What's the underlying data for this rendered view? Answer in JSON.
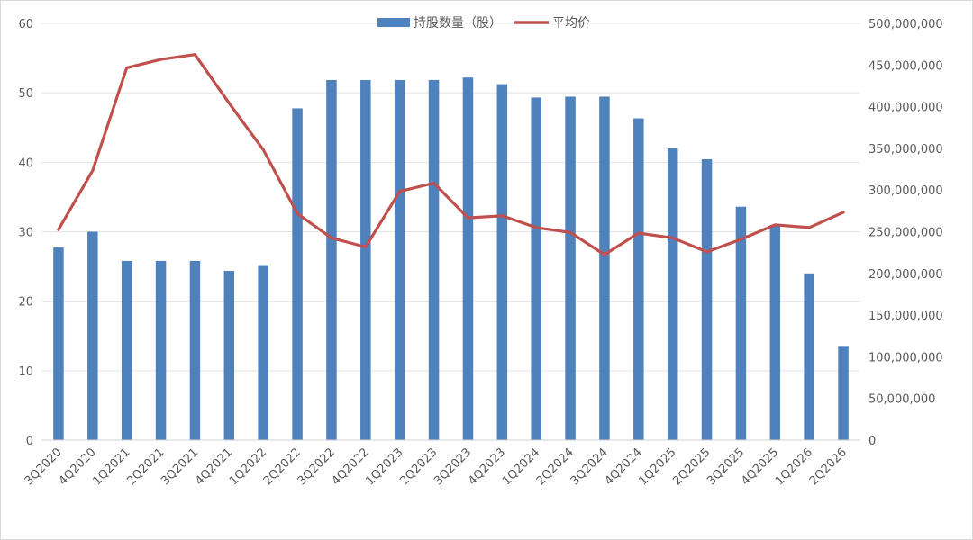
{
  "chart_data": {
    "type": "bar+line",
    "categories": [
      "3Q2020",
      "4Q2020",
      "1Q2021",
      "2Q2021",
      "3Q2021",
      "4Q2021",
      "1Q2022",
      "2Q2022",
      "3Q2022",
      "4Q2022",
      "1Q2023",
      "2Q2023",
      "3Q2023",
      "4Q2023",
      "1Q2024",
      "2Q2024",
      "3Q2024",
      "4Q2024",
      "1Q2025",
      "2Q2025",
      "3Q2025",
      "4Q2025",
      "1Q2026",
      "2Q2026"
    ],
    "series": [
      {
        "name": "持股数量（股）",
        "type": "bar",
        "axis": "right",
        "color": "#4F81BD",
        "values": [
          231000000,
          250000000,
          215000000,
          215000000,
          215000000,
          203000000,
          210000000,
          398000000,
          432000000,
          432000000,
          432000000,
          432000000,
          435000000,
          427000000,
          411000000,
          412000000,
          412000000,
          386000000,
          350000000,
          337000000,
          280000000,
          258000000,
          200000000,
          113000000
        ]
      },
      {
        "name": "平均价",
        "type": "line",
        "axis": "left",
        "color": "#C0504D",
        "values": [
          30.3,
          38.8,
          53.6,
          54.8,
          55.5,
          48.5,
          41.8,
          32.6,
          29.1,
          27.8,
          35.8,
          37.0,
          32.0,
          32.3,
          30.6,
          29.9,
          26.7,
          29.8,
          29.1,
          27.1,
          28.9,
          31.0,
          30.6,
          32.8
        ]
      }
    ],
    "y_left": {
      "min": 0,
      "max": 60,
      "ticks": [
        "0",
        "10",
        "20",
        "30",
        "40",
        "50",
        "60"
      ]
    },
    "y_right": {
      "min": 0,
      "max": 500000000,
      "ticks": [
        "0",
        "50,000,000",
        "100,000,000",
        "150,000,000",
        "200,000,000",
        "250,000,000",
        "300,000,000",
        "350,000,000",
        "400,000,000",
        "450,000,000",
        "500,000,000"
      ]
    },
    "legend": {
      "position": "top-center",
      "items": [
        {
          "label": "持股数量（股）",
          "swatch": "bar",
          "color": "#4F81BD"
        },
        {
          "label": "平均价",
          "swatch": "line",
          "color": "#C0504D"
        }
      ]
    },
    "grid": true
  }
}
